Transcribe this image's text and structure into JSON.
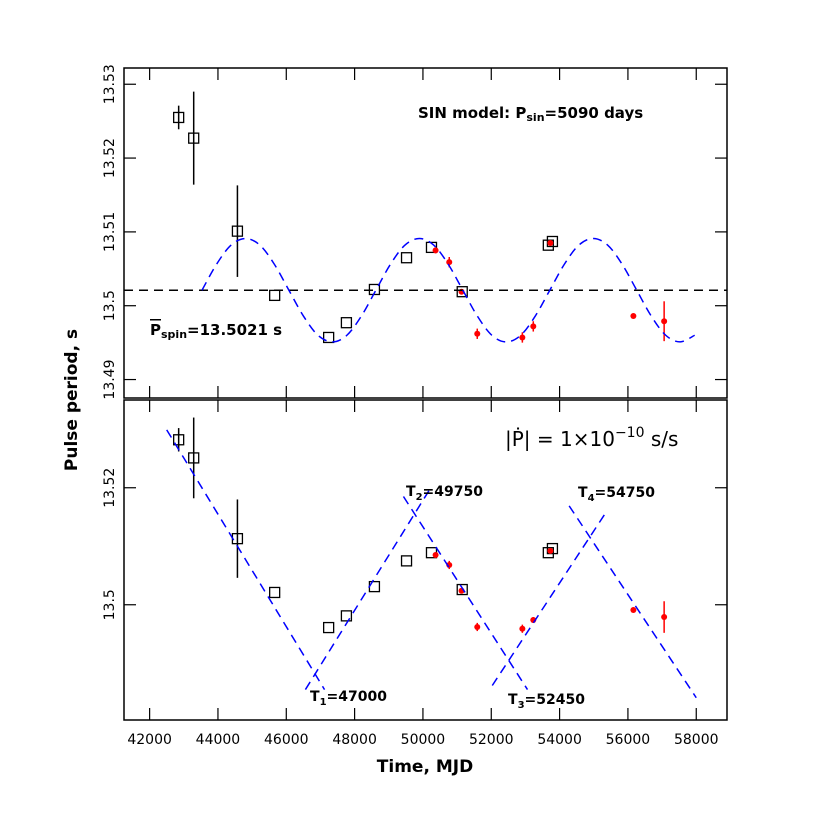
{
  "chart_data": [
    {
      "type": "scatter",
      "ylabel": "Pulse period, s",
      "xlim": [
        41250,
        58900
      ],
      "xticks": [
        42000,
        44000,
        46000,
        48000,
        50000,
        52000,
        54000,
        56000,
        58000
      ],
      "xtick_labels": false,
      "ylim": [
        13.4875,
        13.5322
      ],
      "yticks": [
        13.49,
        13.5,
        13.51,
        13.52,
        13.53
      ],
      "series": [
        {
          "marker": "square",
          "color": "#000000",
          "x": [
            42850,
            43290,
            44570,
            45660,
            47240,
            47760,
            48580,
            49520,
            50250,
            51150,
            53670,
            53790
          ],
          "values": [
            13.5255,
            13.5227,
            13.5101,
            13.5014,
            13.4957,
            13.4977,
            13.5022,
            13.5065,
            13.5079,
            13.5019,
            13.5082,
            13.5087
          ],
          "errors": [
            0.0016,
            0.0063,
            0.0062,
            null,
            null,
            null,
            null,
            null,
            null,
            null,
            null,
            null
          ]
        },
        {
          "marker": "circle",
          "color": "#ff0000",
          "x": [
            50370,
            50770,
            51130,
            51590,
            52910,
            53230,
            53730,
            56160,
            57060
          ],
          "values": [
            13.5075,
            13.5059,
            13.5019,
            13.4962,
            13.4957,
            13.4972,
            13.5085,
            13.4986,
            13.4979
          ],
          "errors": [
            0.0004,
            0.0007,
            null,
            0.0007,
            0.0007,
            0.0007,
            null,
            null,
            0.0027
          ]
        },
        {
          "line": "dashed",
          "color": "#000000",
          "x": [
            41250,
            58900
          ],
          "values": [
            13.5021,
            13.5021
          ]
        },
        {
          "line": "dashed",
          "color": "#0000ff",
          "smooth": true,
          "x": [
            43533,
            43957,
            44381,
            44805,
            45229,
            45653,
            46077,
            46502,
            46926,
            47350,
            47774,
            48198,
            48623,
            49047,
            49471,
            49895,
            50319,
            50743,
            51168,
            51592,
            52016,
            52440,
            52864,
            53288,
            53713,
            54137,
            54561,
            54985,
            55409,
            55833,
            56258,
            56682,
            57106,
            57530,
            57954
          ],
          "values": [
            13.5021,
            13.5056,
            13.5082,
            13.5091,
            13.5082,
            13.5056,
            13.5021,
            13.4986,
            13.496,
            13.4951,
            13.496,
            13.4986,
            13.5021,
            13.5056,
            13.5082,
            13.5091,
            13.5082,
            13.5056,
            13.5021,
            13.4986,
            13.496,
            13.4951,
            13.496,
            13.4986,
            13.5021,
            13.5056,
            13.5082,
            13.5091,
            13.5082,
            13.5056,
            13.5021,
            13.4986,
            13.496,
            13.4951,
            13.496
          ]
        }
      ],
      "annotations": [
        {
          "parts": [
            {
              "text": "SIN model: P"
            },
            {
              "text": "sin",
              "sub": true
            },
            {
              "text": "=5090 days"
            }
          ]
        },
        {
          "parts": [
            {
              "text": "P",
              "overline": true
            },
            {
              "text": "spin",
              "sub": true
            },
            {
              "text": "=13.5021 s"
            }
          ]
        }
      ]
    },
    {
      "type": "scatter",
      "xlabel": "Time, MJD",
      "xlim": [
        41250,
        58900
      ],
      "xticks": [
        42000,
        44000,
        46000,
        48000,
        50000,
        52000,
        54000,
        56000,
        58000
      ],
      "xtick_labels": true,
      "ylim": [
        13.4803,
        13.535
      ],
      "yticks": [
        13.5,
        13.52
      ],
      "series": [
        {
          "marker": "square",
          "color": "#000000",
          "x": [
            42850,
            43290,
            44570,
            45660,
            47240,
            47760,
            48580,
            49520,
            50250,
            51150,
            53670,
            53790
          ],
          "values": [
            13.5282,
            13.5251,
            13.5113,
            13.5021,
            13.4961,
            13.4981,
            13.5031,
            13.5075,
            13.5089,
            13.5026,
            13.5089,
            13.5096
          ],
          "errors": [
            0.002,
            0.0069,
            0.0067,
            null,
            null,
            null,
            null,
            null,
            null,
            null,
            null,
            null
          ]
        },
        {
          "marker": "circle",
          "color": "#ff0000",
          "x": [
            50370,
            50770,
            51130,
            51590,
            52910,
            53230,
            53730,
            56160,
            57060
          ],
          "values": [
            13.5085,
            13.5068,
            13.5024,
            13.4962,
            13.4959,
            13.4974,
            13.5092,
            13.4991,
            13.4979
          ],
          "errors": [
            0.0004,
            0.0007,
            null,
            0.0007,
            0.0007,
            0.0005,
            null,
            null,
            0.0027
          ]
        },
        {
          "line": "dashed",
          "color": "#0000ff",
          "x": [
            42500,
            47120
          ],
          "values": [
            13.5299,
            13.4855
          ]
        },
        {
          "line": "dashed",
          "color": "#0000ff",
          "x": [
            46560,
            50250
          ],
          "values": [
            13.4855,
            13.5202
          ]
        },
        {
          "line": "dashed",
          "color": "#0000ff",
          "x": [
            49430,
            53060
          ],
          "values": [
            13.5185,
            13.4855
          ]
        },
        {
          "line": "dashed",
          "color": "#0000ff",
          "x": [
            52030,
            55370
          ],
          "values": [
            13.4862,
            13.5159
          ]
        },
        {
          "line": "dashed",
          "color": "#0000ff",
          "x": [
            54280,
            58000
          ],
          "values": [
            13.5169,
            13.4841
          ]
        }
      ],
      "annotations": [
        {
          "parts": [
            {
              "text": "|Ṗ|  =  1×10"
            },
            {
              "text": "−10",
              "sup": true
            },
            {
              "text": " s/s"
            }
          ]
        },
        {
          "parts": [
            {
              "text": "T"
            },
            {
              "text": "2",
              "sub": true
            },
            {
              "text": "=49750"
            }
          ]
        },
        {
          "parts": [
            {
              "text": "T"
            },
            {
              "text": "4",
              "sub": true
            },
            {
              "text": "=54750"
            }
          ]
        },
        {
          "parts": [
            {
              "text": "T"
            },
            {
              "text": "1",
              "sub": true
            },
            {
              "text": "=47000"
            }
          ]
        },
        {
          "parts": [
            {
              "text": "T"
            },
            {
              "text": "3",
              "sub": true
            },
            {
              "text": "=52450"
            }
          ]
        }
      ]
    }
  ]
}
